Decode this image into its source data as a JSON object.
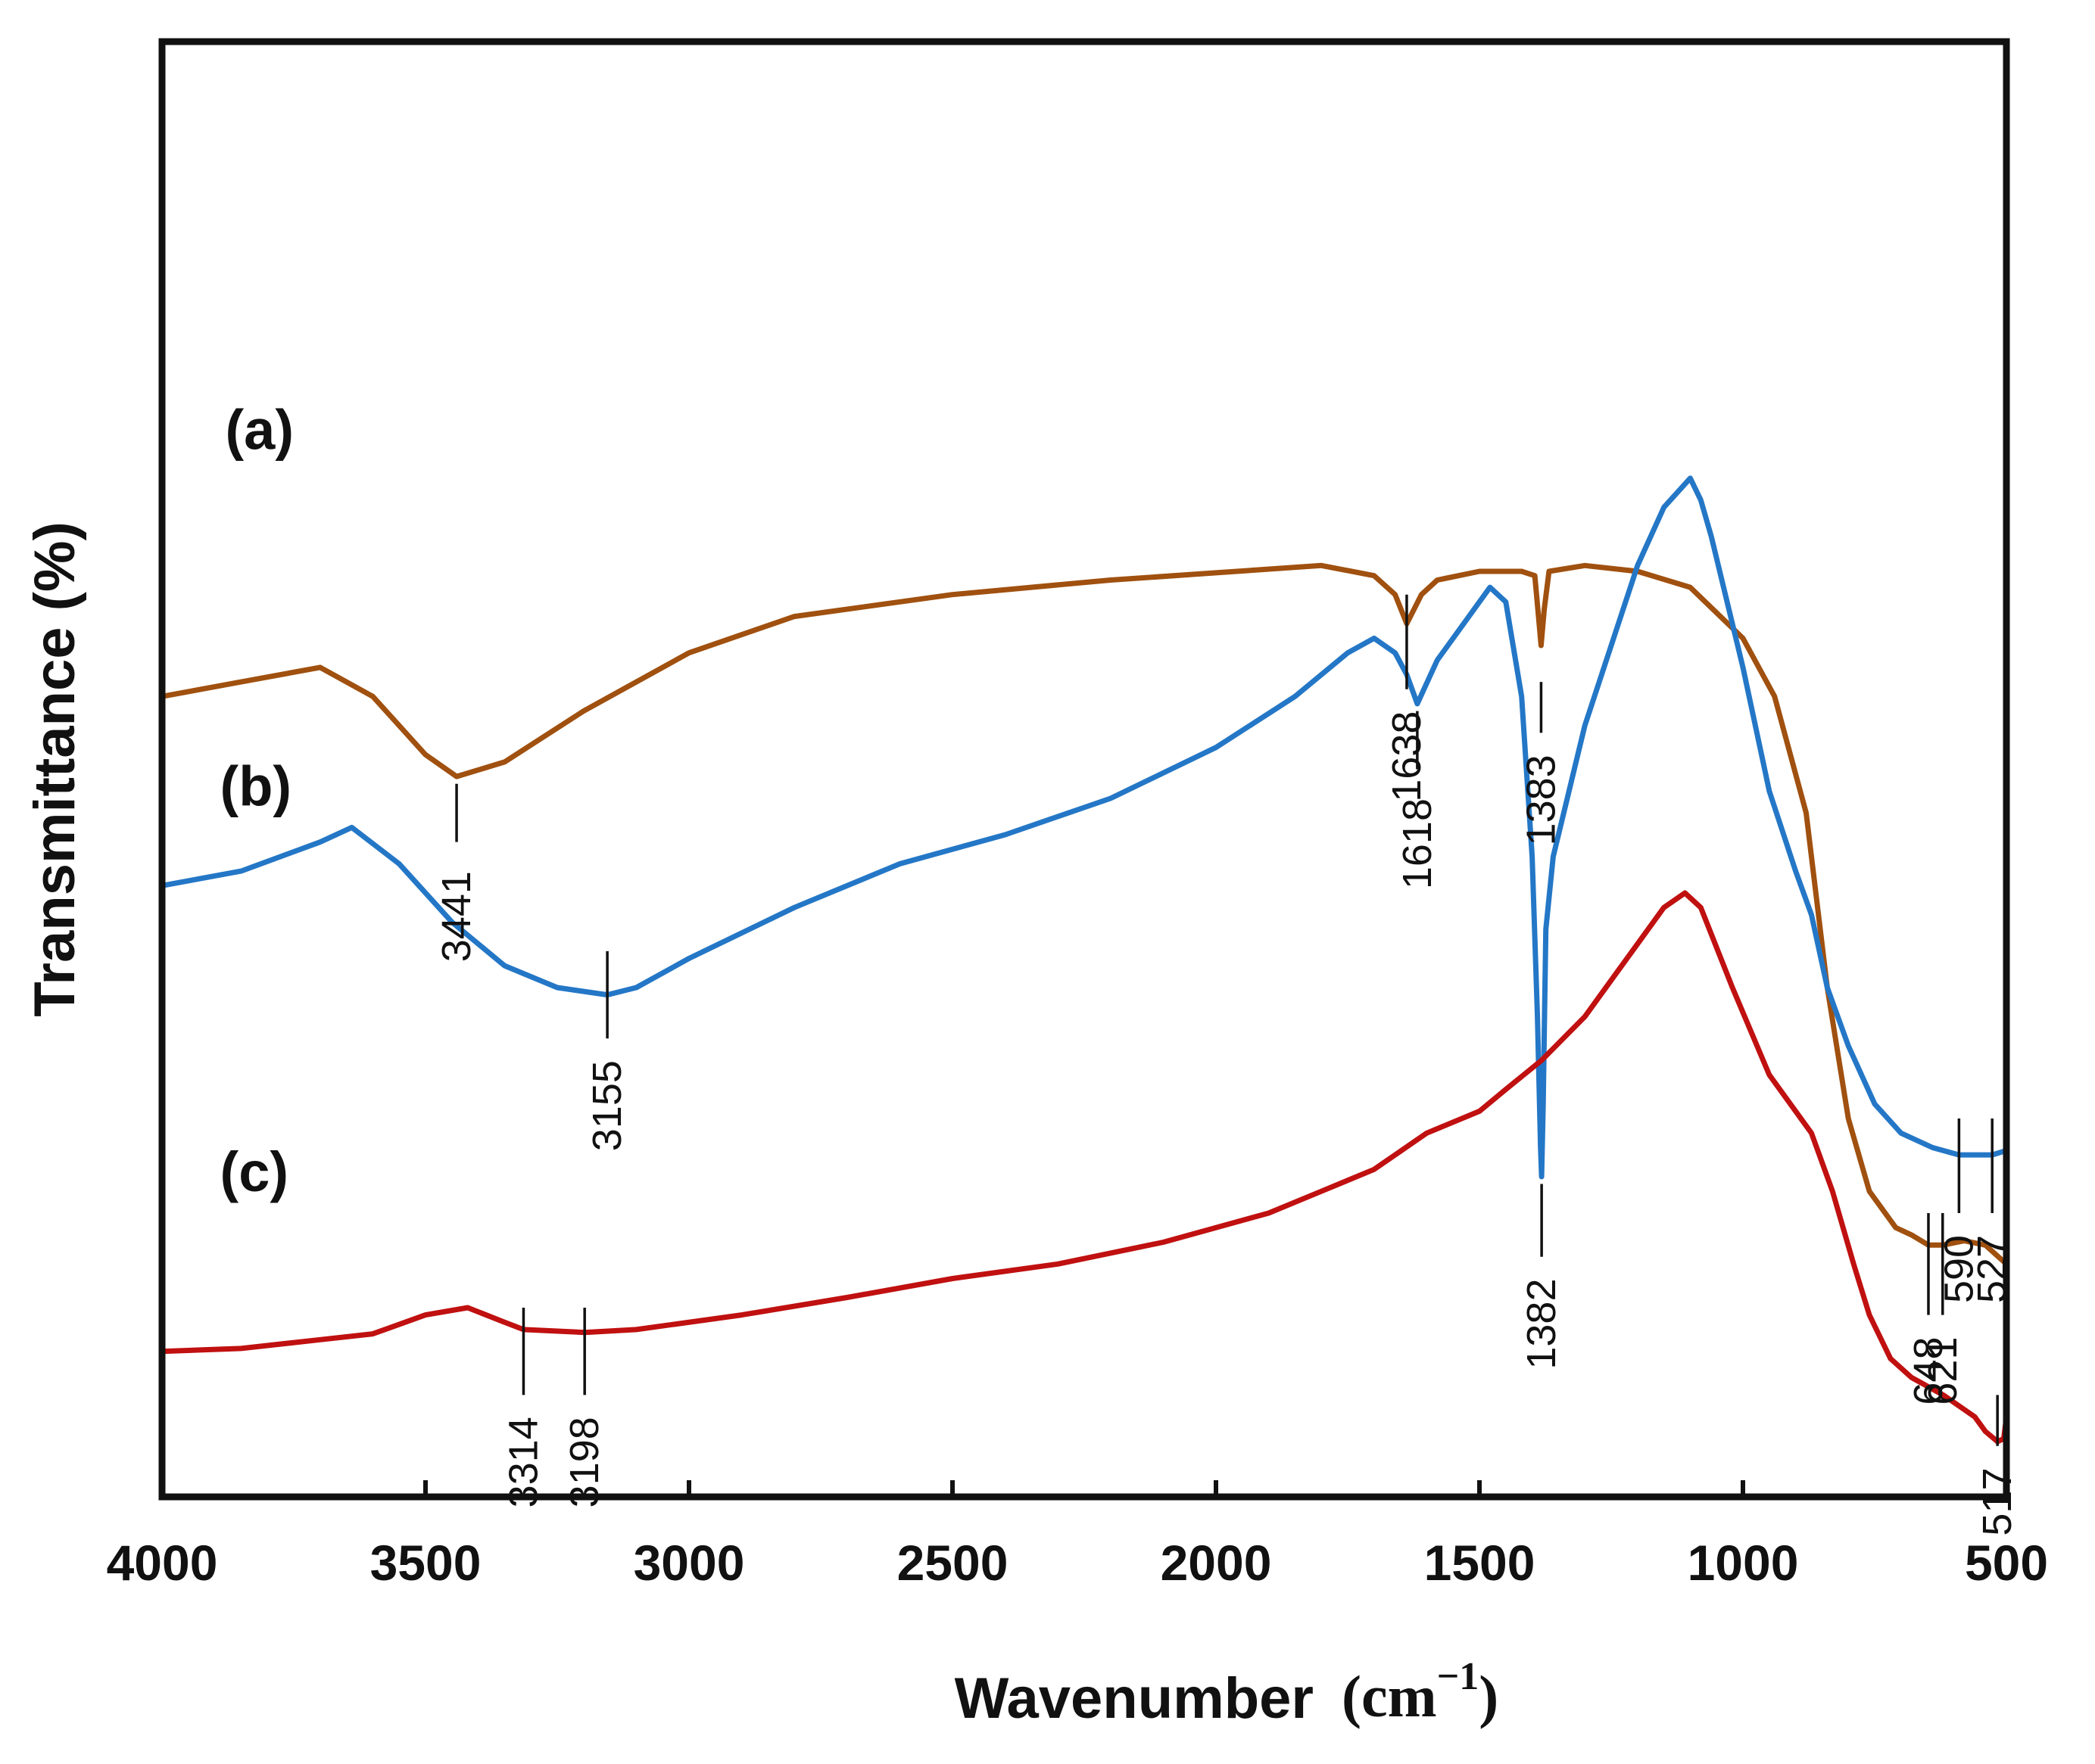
{
  "chart_data": {
    "type": "line",
    "title": "",
    "xlabel": "Wavenumber",
    "xlabel_unit": "cm",
    "xlabel_unit_exponent": "−1",
    "ylabel": "Transmittance (%)",
    "xlim": [
      4000,
      500
    ],
    "x_reversed": true,
    "x_ticks": [
      "4000",
      "3500",
      "3000",
      "2500",
      "2000",
      "1500",
      "1000",
      "500"
    ],
    "y_ticks_shown": false,
    "ylim": [
      0,
      100
    ],
    "grid": false,
    "series": [
      {
        "name": "(a)",
        "color": "#a0500f",
        "points": [
          [
            4000,
            55
          ],
          [
            3850,
            56
          ],
          [
            3700,
            57
          ],
          [
            3600,
            55
          ],
          [
            3500,
            51
          ],
          [
            3441,
            49.5
          ],
          [
            3350,
            50.5
          ],
          [
            3200,
            54
          ],
          [
            3000,
            58
          ],
          [
            2800,
            60.5
          ],
          [
            2500,
            62
          ],
          [
            2200,
            63
          ],
          [
            2000,
            63.5
          ],
          [
            1800,
            64
          ],
          [
            1700,
            63.3
          ],
          [
            1660,
            62
          ],
          [
            1638,
            60
          ],
          [
            1610,
            62
          ],
          [
            1580,
            63
          ],
          [
            1500,
            63.6
          ],
          [
            1420,
            63.6
          ],
          [
            1395,
            63.3
          ],
          [
            1388,
            60.5
          ],
          [
            1383,
            58.5
          ],
          [
            1377,
            61
          ],
          [
            1368,
            63.6
          ],
          [
            1300,
            64
          ],
          [
            1200,
            63.6
          ],
          [
            1100,
            62.5
          ],
          [
            1000,
            59
          ],
          [
            940,
            55
          ],
          [
            880,
            47
          ],
          [
            840,
            35
          ],
          [
            800,
            26
          ],
          [
            760,
            21
          ],
          [
            710,
            18.5
          ],
          [
            680,
            18
          ],
          [
            648,
            17.3
          ],
          [
            621,
            17.3
          ],
          [
            580,
            17.6
          ],
          [
            540,
            17.3
          ],
          [
            500,
            16
          ]
        ]
      },
      {
        "name": "(b)",
        "color": "#2477c6",
        "points": [
          [
            4000,
            42
          ],
          [
            3850,
            43
          ],
          [
            3700,
            45
          ],
          [
            3640,
            46
          ],
          [
            3550,
            43.5
          ],
          [
            3450,
            39.5
          ],
          [
            3350,
            36.5
          ],
          [
            3250,
            35
          ],
          [
            3155,
            34.5
          ],
          [
            3100,
            35
          ],
          [
            3000,
            37
          ],
          [
            2800,
            40.5
          ],
          [
            2600,
            43.5
          ],
          [
            2400,
            45.5
          ],
          [
            2200,
            48
          ],
          [
            2000,
            51.5
          ],
          [
            1850,
            55
          ],
          [
            1750,
            58
          ],
          [
            1700,
            59
          ],
          [
            1660,
            58
          ],
          [
            1638,
            56.5
          ],
          [
            1618,
            54.5
          ],
          [
            1580,
            57.5
          ],
          [
            1520,
            60.5
          ],
          [
            1480,
            62.5
          ],
          [
            1450,
            61.5
          ],
          [
            1420,
            55
          ],
          [
            1400,
            44
          ],
          [
            1390,
            33
          ],
          [
            1384,
            24
          ],
          [
            1382,
            22
          ],
          [
            1379,
            27
          ],
          [
            1374,
            39
          ],
          [
            1360,
            44
          ],
          [
            1300,
            53
          ],
          [
            1200,
            64
          ],
          [
            1150,
            68
          ],
          [
            1100,
            70
          ],
          [
            1080,
            68.5
          ],
          [
            1060,
            66
          ],
          [
            1000,
            57
          ],
          [
            950,
            48.5
          ],
          [
            900,
            43
          ],
          [
            870,
            40
          ],
          [
            840,
            35
          ],
          [
            800,
            31
          ],
          [
            750,
            27
          ],
          [
            700,
            25
          ],
          [
            640,
            24
          ],
          [
            590,
            23.5
          ],
          [
            527,
            23.5
          ],
          [
            500,
            23.8
          ]
        ]
      },
      {
        "name": "(c)",
        "color": "#c01010",
        "points": [
          [
            4000,
            10
          ],
          [
            3850,
            10.2
          ],
          [
            3700,
            10.8
          ],
          [
            3600,
            11.2
          ],
          [
            3500,
            12.5
          ],
          [
            3420,
            13
          ],
          [
            3350,
            12
          ],
          [
            3314,
            11.5
          ],
          [
            3198,
            11.3
          ],
          [
            3100,
            11.5
          ],
          [
            2900,
            12.5
          ],
          [
            2700,
            13.7
          ],
          [
            2500,
            15
          ],
          [
            2300,
            16
          ],
          [
            2100,
            17.5
          ],
          [
            1900,
            19.5
          ],
          [
            1800,
            21
          ],
          [
            1700,
            22.5
          ],
          [
            1600,
            25
          ],
          [
            1500,
            26.5
          ],
          [
            1450,
            28
          ],
          [
            1382,
            30
          ],
          [
            1300,
            33
          ],
          [
            1250,
            35.5
          ],
          [
            1200,
            38
          ],
          [
            1150,
            40.5
          ],
          [
            1110,
            41.5
          ],
          [
            1080,
            40.5
          ],
          [
            1020,
            35
          ],
          [
            950,
            29
          ],
          [
            870,
            25
          ],
          [
            830,
            21
          ],
          [
            790,
            16
          ],
          [
            760,
            12.5
          ],
          [
            720,
            9.5
          ],
          [
            680,
            8.2
          ],
          [
            620,
            7
          ],
          [
            560,
            5.5
          ],
          [
            540,
            4.5
          ],
          [
            517,
            3.8
          ],
          [
            505,
            4
          ],
          [
            500,
            5.5
          ]
        ]
      }
    ],
    "series_labels": [
      {
        "text": "(a)",
        "x": 3880,
        "y": 72
      },
      {
        "text": "(b)",
        "x": 3890,
        "y": 47.5
      },
      {
        "text": "(c)",
        "x": 3890,
        "y": 21
      }
    ],
    "peak_annotations": [
      {
        "label": "3441",
        "x": 3441,
        "line_y": [
          49,
          45
        ],
        "text_y": 43
      },
      {
        "label": "1638",
        "x": 1638,
        "line_y": [
          62,
          55.5
        ],
        "text_y": 54
      },
      {
        "label": "1383",
        "x": 1383,
        "line_y": [
          56,
          52.5
        ],
        "text_y": 51
      },
      {
        "label": "648",
        "x": 648,
        "line_y": [
          19.5,
          12.5
        ],
        "text_y": 11
      },
      {
        "label": "621",
        "x": 621,
        "line_y": [
          19.5,
          12.5
        ],
        "text_y": 11
      },
      {
        "label": "1618",
        "x": 1618,
        "line_y": [
          54,
          50
        ],
        "text_y": 48
      },
      {
        "label": "3155",
        "x": 3155,
        "line_y": [
          37.5,
          31.5
        ],
        "text_y": 30
      },
      {
        "label": "1382",
        "x": 1382,
        "line_y": [
          21.5,
          16.5
        ],
        "text_y": 15
      },
      {
        "label": "590",
        "x": 590,
        "line_y": [
          26,
          19.5
        ],
        "text_y": 18
      },
      {
        "label": "527",
        "x": 527,
        "line_y": [
          26,
          19.5
        ],
        "text_y": 18
      },
      {
        "label": "3314",
        "x": 3314,
        "line_y": [
          13,
          7
        ],
        "text_y": 5.5
      },
      {
        "label": "3198",
        "x": 3198,
        "line_y": [
          13,
          7
        ],
        "text_y": 5.5
      },
      {
        "label": "517",
        "x": 517,
        "line_y": [
          7,
          3.5
        ],
        "text_y": 2
      }
    ]
  }
}
